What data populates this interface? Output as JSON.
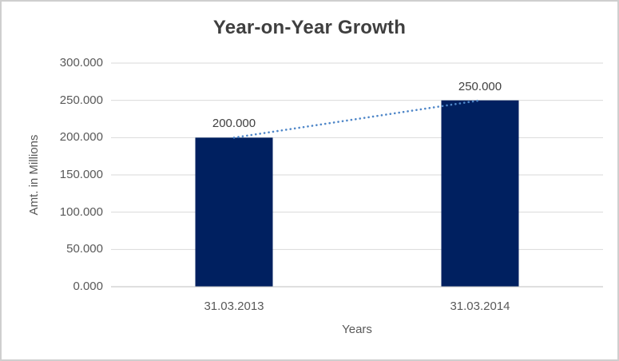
{
  "chart_data": {
    "type": "bar",
    "title": "Year-on-Year Growth",
    "xlabel": "Years",
    "ylabel": "Amt. in Millions",
    "categories": [
      "31.03.2013",
      "31.03.2014"
    ],
    "values": [
      200,
      250
    ],
    "data_labels": [
      "200.000",
      "250.000"
    ],
    "ytick_values": [
      0,
      50,
      100,
      150,
      200,
      250,
      300
    ],
    "ytick_labels": [
      "0.000",
      "50.000",
      "100.000",
      "150.000",
      "200.000",
      "250.000",
      "300.000"
    ],
    "ylim": [
      0,
      300
    ],
    "grid": true,
    "legend": "none",
    "trendline": {
      "type": "linear",
      "style": "dotted",
      "from": [
        1,
        200
      ],
      "to": [
        2,
        250
      ]
    },
    "colors": {
      "bar": "#002060",
      "trendline": "#4e86c8",
      "gridline": "#d9d9d9",
      "axis_line": "#bfbfbf",
      "title_text": "#3f3f3f",
      "tick_text": "#595959",
      "data_label_text": "#404040",
      "background": "#ffffff",
      "border": "#cfcfcf"
    }
  }
}
